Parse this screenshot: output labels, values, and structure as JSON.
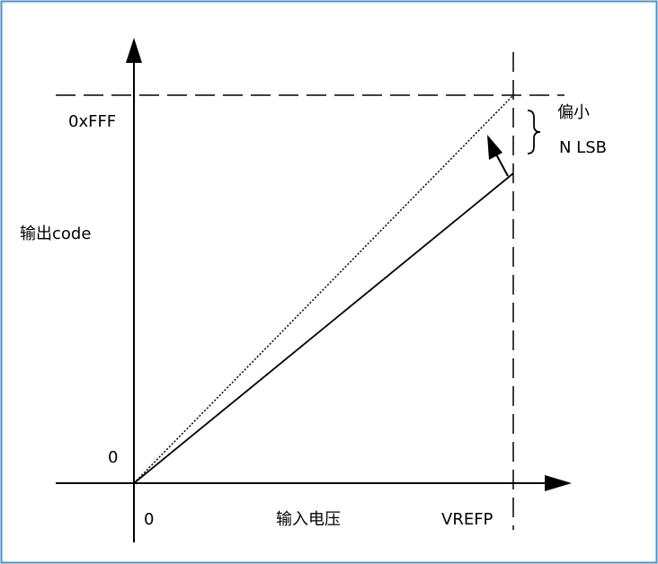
{
  "frame_color": "#4a90c8",
  "line_color": "#000000",
  "labels": {
    "y_max": "0xFFF",
    "y_zero": "0",
    "y_axis": "输出code",
    "x_zero": "0",
    "x_axis": "输入电压",
    "x_ref": "VREFP",
    "offset_line1": "偏小",
    "offset_line2": "N LSB"
  }
}
